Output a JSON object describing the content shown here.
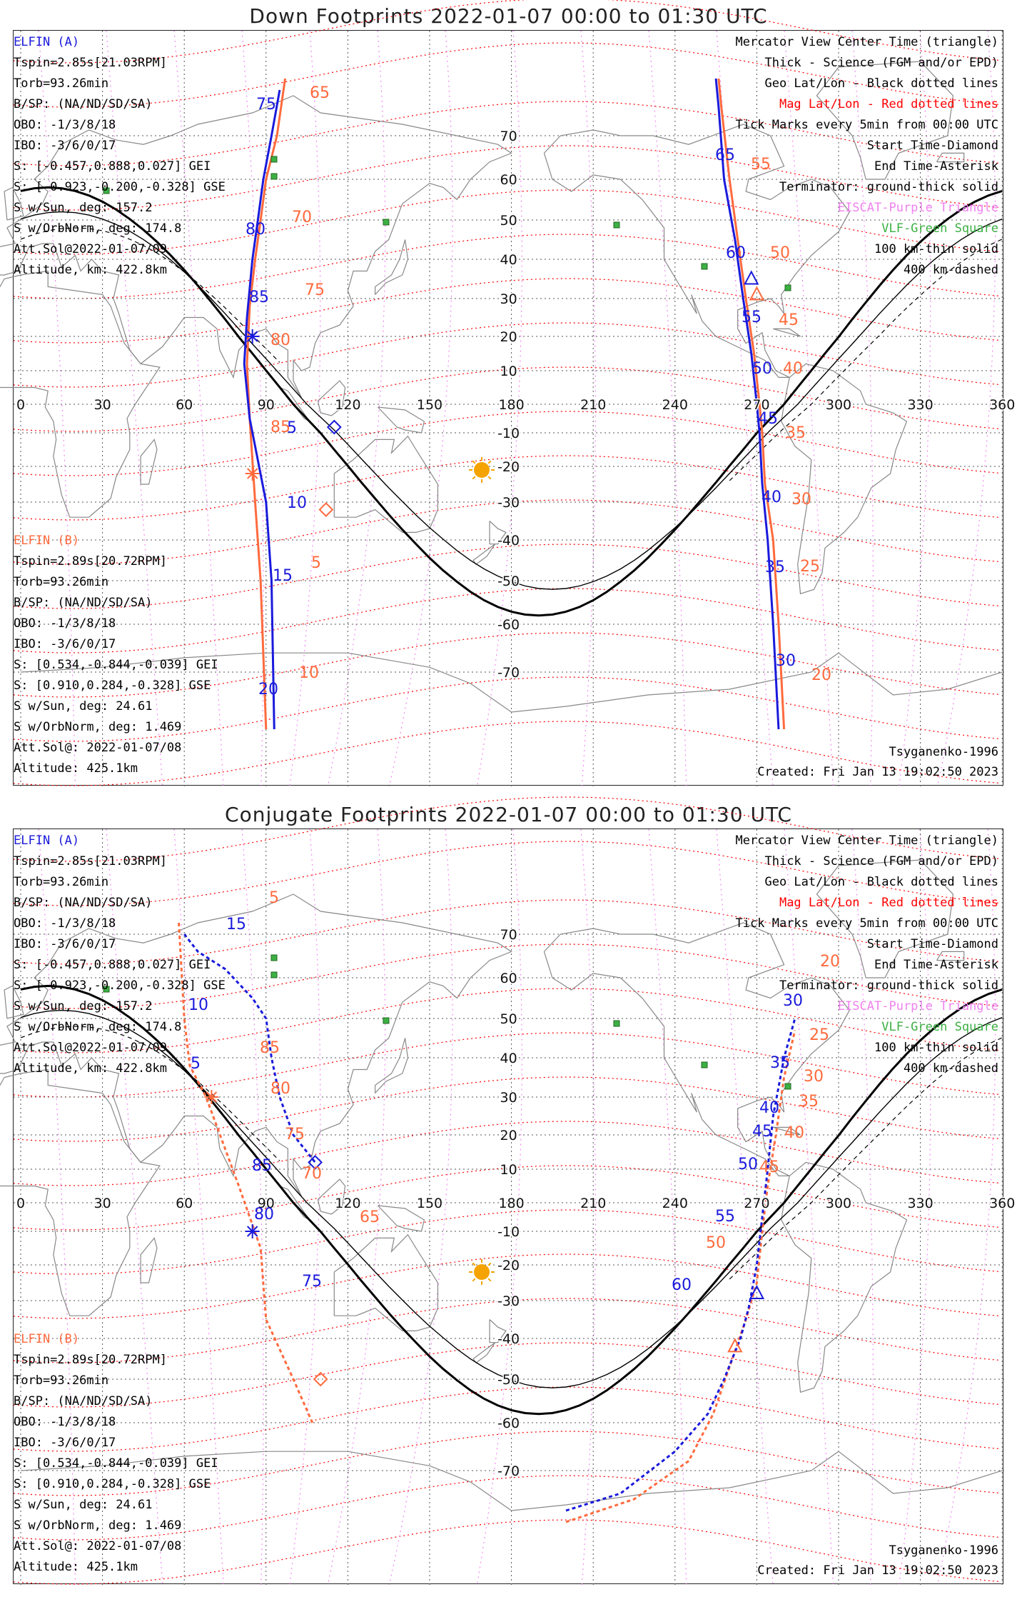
{
  "panels": [
    {
      "title": "Down Footprints 2022-01-07 00:00 to 01:30 UTC",
      "elfin_a": {
        "name": "ELFIN (A)",
        "lines": [
          "Tspin=2.85s[21.03RPM]",
          "Torb=93.26min",
          "B/SP: (NA/ND/SD/SA)",
          "OBO: -1/3/8/18",
          "IBO: -3/6/0/17",
          "S: [-0.457,0.888,0.027] GEI",
          "S: [-0.923,-0.200,-0.328] GSE",
          "S w/Sun, deg: 157.2",
          "S w/OrbNorm, deg: 174.8",
          "Att.Sol@2022-01-07/09",
          "Altitude, km: 422.8km"
        ]
      },
      "elfin_b": {
        "name": "ELFIN (B)",
        "lines": [
          "Tspin=2.89s[20.72RPM]",
          "Torb=93.26min",
          "B/SP: (NA/ND/SD/SA)",
          "OBO: -1/3/8/18",
          "IBO: -3/6/0/17",
          "S: [0.534,-0.844,-0.039] GEI",
          "S: [0.910,0.284,-0.328] GSE",
          "S w/Sun, deg: 24.61",
          "S w/OrbNorm, deg: 1.469",
          "Att.Sol@: 2022-01-07/08",
          "Altitude: 425.1km"
        ]
      },
      "legend": [
        {
          "text": "Mercator View Center Time (triangle)",
          "color": "#000000"
        },
        {
          "text": "Thick - Science (FGM and/or EPD)",
          "color": "#000000"
        },
        {
          "text": "Geo Lat/Lon - Black dotted lines",
          "color": "#000000"
        },
        {
          "text": "Mag Lat/Lon - Red dotted lines",
          "color": "#ff0000"
        },
        {
          "text": "Tick Marks every 5min from 00:00 UTC",
          "color": "#000000"
        },
        {
          "text": "Start Time-Diamond",
          "color": "#000000"
        },
        {
          "text": "End Time-Asterisk",
          "color": "#000000"
        },
        {
          "text": "Terminator: ground-thick solid",
          "color": "#000000"
        },
        {
          "text": "EISCAT-Purple Triangle",
          "color": "#ee82ee"
        },
        {
          "text": "VLF-Green Square",
          "color": "#3cb043"
        },
        {
          "text": "100 km-thin solid",
          "color": "#000000"
        },
        {
          "text": "400 km-dashed",
          "color": "#000000"
        }
      ],
      "credit": "Tsyganenko-1996",
      "created": "Created: Fri Jan 13 19:02:50 2023",
      "lon_ticks": [
        "0",
        "30",
        "60",
        "90",
        "120",
        "150",
        "180",
        "210",
        "240",
        "270",
        "300",
        "330",
        "360"
      ],
      "lat_ticks": [
        "70",
        "60",
        "50",
        "40",
        "30",
        "20",
        "10",
        "-10",
        "-20",
        "-30",
        "-40",
        "-50",
        "-60",
        "-70"
      ],
      "tick_labels_a": [
        "75",
        "80",
        "85",
        "5",
        "10",
        "15",
        "20",
        "65",
        "60",
        "55",
        "50",
        "45",
        "40",
        "35",
        "30"
      ],
      "tick_labels_b": [
        "65",
        "70",
        "75",
        "80",
        "85",
        "5",
        "10",
        "55",
        "50",
        "45",
        "40",
        "35",
        "30",
        "25",
        "20"
      ]
    },
    {
      "title": "Conjugate Footprints 2022-01-07 00:00 to 01:30 UTC",
      "elfin_a": {
        "name": "ELFIN (A)",
        "lines": [
          "Tspin=2.85s[21.03RPM]",
          "Torb=93.26min",
          "B/SP: (NA/ND/SD/SA)",
          "OBO: -1/3/8/18",
          "IBO: -3/6/0/17",
          "S: [-0.457,0.888,0.027] GEI",
          "S: [-0.923,-0.200,-0.328] GSE",
          "S w/Sun, deg: 157.2",
          "S w/OrbNorm, deg: 174.8",
          "Att.Sol@2022-01-07/09",
          "Altitude, km: 422.8km"
        ]
      },
      "elfin_b": {
        "name": "ELFIN (B)",
        "lines": [
          "Tspin=2.89s[20.72RPM]",
          "Torb=93.26min",
          "B/SP: (NA/ND/SD/SA)",
          "OBO: -1/3/8/18",
          "IBO: -3/6/0/17",
          "S: [0.534,-0.844,-0.039] GEI",
          "S: [0.910,0.284,-0.328] GSE",
          "S w/Sun, deg: 24.61",
          "S w/OrbNorm, deg: 1.469",
          "Att.Sol@: 2022-01-07/08",
          "Altitude: 425.1km"
        ]
      },
      "legend": [
        {
          "text": "Mercator View Center Time (triangle)",
          "color": "#000000"
        },
        {
          "text": "Thick - Science (FGM and/or EPD)",
          "color": "#000000"
        },
        {
          "text": "Geo Lat/Lon - Black dotted lines",
          "color": "#000000"
        },
        {
          "text": "Mag Lat/Lon - Red dotted lines",
          "color": "#ff0000"
        },
        {
          "text": "Tick Marks every 5min from 00:00 UTC",
          "color": "#000000"
        },
        {
          "text": "Start Time-Diamond",
          "color": "#000000"
        },
        {
          "text": "End Time-Asterisk",
          "color": "#000000"
        },
        {
          "text": "Terminator: ground-thick solid",
          "color": "#000000"
        },
        {
          "text": "EISCAT-Purple Triangle",
          "color": "#ee82ee"
        },
        {
          "text": "VLF-Green Square",
          "color": "#3cb043"
        },
        {
          "text": "100 km-thin solid",
          "color": "#000000"
        },
        {
          "text": "400 km-dashed",
          "color": "#000000"
        }
      ],
      "credit": "Tsyganenko-1996",
      "created": "Created: Fri Jan 13 19:02:50 2023",
      "lon_ticks": [
        "0",
        "30",
        "60",
        "90",
        "120",
        "150",
        "180",
        "210",
        "240",
        "270",
        "300",
        "330",
        "360"
      ],
      "lat_ticks": [
        "70",
        "60",
        "50",
        "40",
        "30",
        "20",
        "10",
        "-10",
        "-20",
        "-30",
        "-40",
        "-50",
        "-60",
        "-70"
      ],
      "tick_labels_a": [
        "15",
        "10",
        "5",
        "85",
        "80",
        "75",
        "30",
        "35",
        "40",
        "45",
        "50",
        "55",
        "60"
      ],
      "tick_labels_b": [
        "5",
        "85",
        "80",
        "75",
        "70",
        "65",
        "20",
        "25",
        "30",
        "35",
        "40",
        "45",
        "50"
      ]
    }
  ],
  "colors": {
    "elfin_a": "#1a1adc",
    "elfin_b": "#ff6a3d",
    "mag_grid": "#ff0000",
    "sun": "#f5a300",
    "vlf": "#3cb043",
    "eiscat": "#ee82ee"
  }
}
